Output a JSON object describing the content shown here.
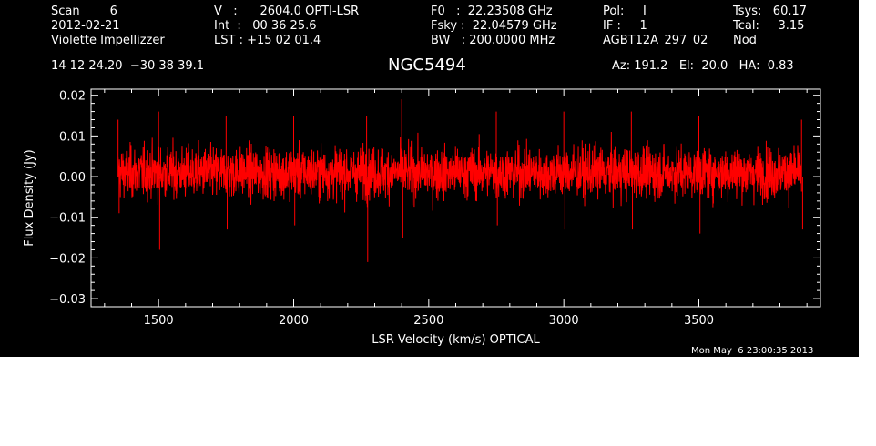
{
  "header": {
    "col1": [
      "Scan        6",
      "2012-02-21",
      "Violette Impellizzer"
    ],
    "col2": [
      "V   :      2604.0 OPTI-LSR",
      "Int  :   00 36 25.6",
      "LST : +15 02 01.4"
    ],
    "col3": [
      "F0   :  22.23508 GHz",
      "Fsky :  22.04579 GHz",
      "BW   : 200.0000 MHz"
    ],
    "col4": [
      "Pol:     I",
      "IF :     1",
      "AGBT12A_297_02"
    ],
    "col5": [
      "Tsys:   60.17",
      "Tcal:     3.15",
      "Nod"
    ],
    "coords": "14 12 24.20  −30 38 39.1",
    "source": "NGC5494",
    "pointing": "Az: 191.2   El:  20.0   HA:  0.83",
    "timestamp": "Mon May  6 23:00:35 2013"
  },
  "colors": {
    "background": "#000000",
    "axes": "#ffffff",
    "trace": "#ff0000"
  },
  "chart_data": {
    "type": "line",
    "title": "NGC5494",
    "xlabel": "LSR Velocity (km/s) OPTICAL",
    "ylabel": "Flux Density (Jy)",
    "xlim": [
      1250,
      3950
    ],
    "ylim": [
      -0.032,
      0.0215
    ],
    "x_ticks": [
      1500,
      2000,
      2500,
      3000,
      3500
    ],
    "x_tick_labels": [
      "1500",
      "2000",
      "2500",
      "3000",
      "3500"
    ],
    "y_ticks": [
      0.02,
      0.01,
      0.0,
      -0.01,
      -0.02,
      -0.03
    ],
    "y_tick_labels": [
      "0.02",
      "0.01",
      "0.00",
      "−0.01",
      "−0.02",
      "−0.03"
    ],
    "grid": false,
    "series": [
      {
        "x_start": 1350,
        "x_end": 3880,
        "noise_rms_jy": 0.005,
        "mean_jy": 0.001,
        "envelope": {
          "x": [
            1350,
            1500,
            1750,
            2000,
            2270,
            2400,
            2750,
            3000,
            3250,
            3500,
            3880
          ],
          "max": [
            0.014,
            0.016,
            0.015,
            0.015,
            0.015,
            0.019,
            0.016,
            0.016,
            0.016,
            0.015,
            0.014
          ],
          "min": [
            -0.009,
            -0.018,
            -0.013,
            -0.012,
            -0.021,
            -0.015,
            -0.012,
            -0.013,
            -0.013,
            -0.014,
            -0.013
          ]
        }
      }
    ]
  }
}
